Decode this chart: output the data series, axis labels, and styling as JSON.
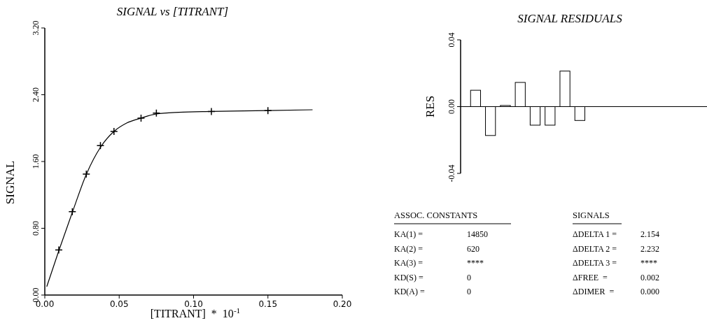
{
  "chart_data": [
    {
      "type": "scatter",
      "title": "SIGNAL vs [TITRANT]",
      "xlabel": "[TITRANT]  *  10$^{-1}$",
      "ylabel": "SIGNAL",
      "xlim": [
        0,
        0.2
      ],
      "xticks": [
        {
          "value": 0,
          "label": "0.00"
        },
        {
          "value": 0.05,
          "label": "0.05"
        },
        {
          "value": 0.1,
          "label": "0.10"
        },
        {
          "value": 0.15,
          "label": "0.15"
        },
        {
          "value": 0.2,
          "label": "0.20"
        }
      ],
      "ylim": [
        0,
        3.2
      ],
      "yticks": [
        {
          "value": 0,
          "label": "0.00"
        },
        {
          "value": 0.8,
          "label": "0.80"
        },
        {
          "value": 1.6,
          "label": "1.60"
        },
        {
          "value": 2.4,
          "label": "2.40"
        },
        {
          "value": 3.2,
          "label": "3.20"
        }
      ],
      "series": [
        {
          "type": "line",
          "color": "#000000",
          "marker": "none",
          "x": [
            0.0013,
            0.0094,
            0.0185,
            0.028,
            0.0374,
            0.0465,
            0.055,
            0.0647,
            0.075,
            0.09,
            0.112,
            0.15,
            0.18
          ],
          "values": [
            0.1,
            0.53,
            0.99,
            1.45,
            1.77,
            1.96,
            2.06,
            2.12,
            2.17,
            2.19,
            2.2,
            2.21,
            2.22
          ]
        },
        {
          "type": "scatter",
          "color": "#000000",
          "marker": "cross",
          "x": [
            0.0094,
            0.0185,
            0.0279,
            0.0374,
            0.0465,
            0.0647,
            0.075,
            0.112,
            0.15
          ],
          "values": [
            0.54,
            1.0,
            1.45,
            1.79,
            1.96,
            2.12,
            2.18,
            2.2,
            2.21
          ]
        }
      ]
    },
    {
      "type": "bar",
      "title": "SIGNAL RESIDUALS",
      "ylabel": "RES",
      "categories": [
        null,
        null,
        null,
        null,
        null,
        null,
        null,
        null,
        null,
        null,
        null,
        null,
        null,
        null,
        null,
        null
      ],
      "color": "#ffffff",
      "values": [
        0.0098,
        -0.0173,
        0.0007,
        0.0145,
        -0.0111,
        -0.0111,
        0.0213,
        -0.0083,
        null,
        null,
        null,
        null,
        null,
        null,
        null,
        null
      ],
      "ylim": [
        -0.04,
        0.04
      ],
      "yticks": [
        {
          "value": 0.04,
          "label": "0.04"
        },
        {
          "value": 0,
          "label": "0.00"
        },
        {
          "value": -0.04,
          "label": "-0.04"
        }
      ],
      "tick_labels": "y"
    },
    {
      "type": "other",
      "annotations": [
        "ASSOC. CONSTANTS",
        "SIGNALS",
        "KA(1) =",
        "14850",
        "ΔDELTA 1 =",
        "2.154",
        "KA(2) =",
        "620",
        "ΔDELTA 2 =",
        "2.232",
        "KA(3) =",
        "****",
        "ΔDELTA 3 =",
        "****",
        "KD(S) =",
        "0",
        "ΔFREE  =",
        "0.002",
        "KD(A) =",
        "0",
        "ΔDIMER  =",
        "0.000"
      ]
    }
  ]
}
